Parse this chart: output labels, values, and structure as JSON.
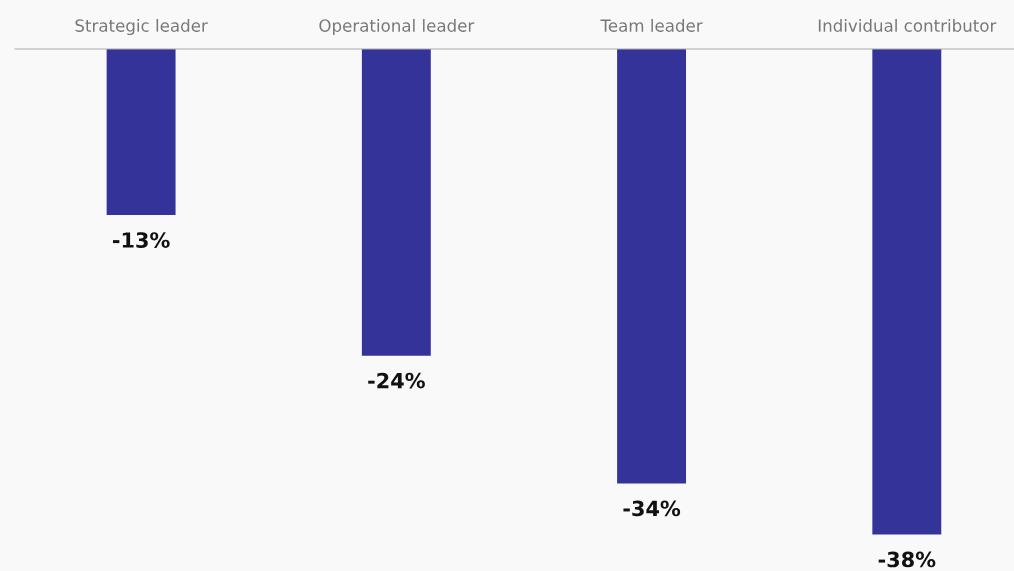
{
  "chart_data": {
    "type": "bar",
    "categories": [
      "Strategic leader",
      "Operational leader",
      "Team leader",
      "Individual contributor"
    ],
    "values": [
      -13,
      -24,
      -34,
      -38
    ],
    "value_labels": [
      "-13%",
      "-24%",
      "-34%",
      "-38%"
    ],
    "color": "#343399",
    "grid": false,
    "legend": false
  }
}
